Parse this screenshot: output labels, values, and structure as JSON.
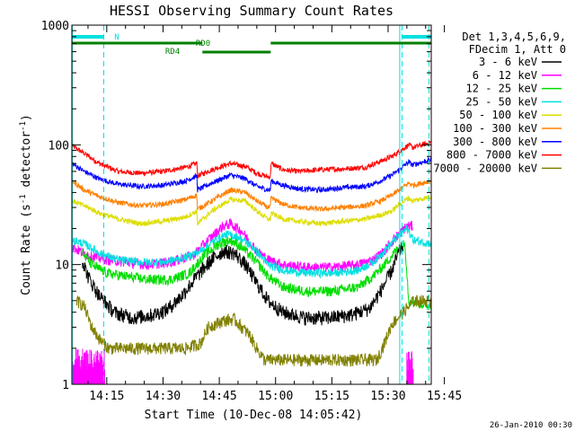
{
  "chart_data": {
    "type": "line",
    "title": "HESSI Observing Summary Count Rates",
    "xlabel": "Start Time (10-Dec-08 14:05:42)",
    "ylabel_prefix": "Count Rate (s",
    "ylabel_sup1": "-1",
    "ylabel_mid": " detector",
    "ylabel_sup2": "-1",
    "ylabel_suffix": ")",
    "y_scale": "log",
    "ylim": [
      1,
      1000
    ],
    "y_ticks": [
      {
        "value": 1,
        "label": "1"
      },
      {
        "value": 10,
        "label": "10"
      },
      {
        "value": 100,
        "label": "100"
      },
      {
        "value": 1000,
        "label": "1000"
      }
    ],
    "xlim_min": [
      5.7,
      101.5
    ],
    "x_ticks": [
      {
        "value": 15,
        "label": "14:15"
      },
      {
        "value": 30,
        "label": "14:30"
      },
      {
        "value": 45,
        "label": "14:45"
      },
      {
        "value": 60,
        "label": "15:00"
      },
      {
        "value": 75,
        "label": "15:15"
      },
      {
        "value": 90,
        "label": "15:30"
      },
      {
        "value": 105,
        "label": "15:45"
      }
    ],
    "legend": {
      "position": "right",
      "header": [
        "Det 1,3,4,5,6,9,",
        "FDecim 1, Att 0"
      ],
      "entries": [
        {
          "label": "3 - 6 keV",
          "color": "#000000"
        },
        {
          "label": "6 - 12 keV",
          "color": "#ff00ff"
        },
        {
          "label": "12 - 25 keV",
          "color": "#00dd00"
        },
        {
          "label": "25 - 50 keV",
          "color": "#00e0e0"
        },
        {
          "label": "50 - 100 keV",
          "color": "#dddd00"
        },
        {
          "label": "100 - 300 keV",
          "color": "#ff8000"
        },
        {
          "label": "300 - 800 keV",
          "color": "#0000ff"
        },
        {
          "label": "800 - 7000 keV",
          "color": "#ff0000"
        },
        {
          "label": "7000 - 20000 keV",
          "color": "#808000"
        }
      ]
    },
    "series": [
      {
        "key": "red",
        "color": "#ff0000",
        "noise": 0.05,
        "points": [
          [
            5.8,
            98
          ],
          [
            9,
            85
          ],
          [
            13,
            70
          ],
          [
            18,
            60
          ],
          [
            24,
            58
          ],
          [
            30,
            60
          ],
          [
            36,
            65
          ],
          [
            39,
            70
          ],
          [
            39.2,
            55
          ],
          [
            43,
            62
          ],
          [
            48,
            70
          ],
          [
            52,
            66
          ],
          [
            55,
            58
          ],
          [
            58,
            54
          ],
          [
            58.6,
            54
          ],
          [
            58.8,
            70
          ],
          [
            62,
            62
          ],
          [
            66,
            60
          ],
          [
            72,
            62
          ],
          [
            78,
            63
          ],
          [
            84,
            65
          ],
          [
            88,
            73
          ],
          [
            91,
            80
          ],
          [
            93,
            88
          ],
          [
            95.5,
            100
          ],
          [
            96.5,
            95
          ],
          [
            101.4,
            105
          ]
        ]
      },
      {
        "key": "blue",
        "color": "#0000ff",
        "noise": 0.05,
        "points": [
          [
            5.8,
            70
          ],
          [
            9,
            60
          ],
          [
            13,
            52
          ],
          [
            18,
            47
          ],
          [
            24,
            45
          ],
          [
            30,
            46
          ],
          [
            36,
            50
          ],
          [
            39,
            55
          ],
          [
            39.2,
            42
          ],
          [
            43,
            48
          ],
          [
            48,
            56
          ],
          [
            52,
            52
          ],
          [
            55,
            45
          ],
          [
            58,
            42
          ],
          [
            58.6,
            42
          ],
          [
            58.8,
            50
          ],
          [
            62,
            46
          ],
          [
            66,
            43
          ],
          [
            72,
            42
          ],
          [
            78,
            44
          ],
          [
            84,
            45
          ],
          [
            88,
            50
          ],
          [
            91,
            56
          ],
          [
            93,
            62
          ],
          [
            95.5,
            72
          ],
          [
            96.5,
            68
          ],
          [
            101.4,
            75
          ]
        ]
      },
      {
        "key": "orange",
        "color": "#ff8000",
        "noise": 0.05,
        "points": [
          [
            5.8,
            50
          ],
          [
            9,
            42
          ],
          [
            13,
            37
          ],
          [
            18,
            33
          ],
          [
            24,
            31
          ],
          [
            30,
            32
          ],
          [
            36,
            35
          ],
          [
            39,
            38
          ],
          [
            39.2,
            29
          ],
          [
            43,
            34
          ],
          [
            48,
            42
          ],
          [
            52,
            40
          ],
          [
            55,
            34
          ],
          [
            58,
            30
          ],
          [
            58.6,
            30
          ],
          [
            58.8,
            36
          ],
          [
            62,
            32
          ],
          [
            66,
            30
          ],
          [
            72,
            29
          ],
          [
            78,
            30
          ],
          [
            84,
            31
          ],
          [
            88,
            34
          ],
          [
            91,
            38
          ],
          [
            93,
            42
          ],
          [
            95.5,
            48
          ],
          [
            96.5,
            46
          ],
          [
            101.4,
            50
          ]
        ]
      },
      {
        "key": "yellow",
        "color": "#dddd00",
        "noise": 0.05,
        "points": [
          [
            5.8,
            34
          ],
          [
            9,
            31
          ],
          [
            13,
            27
          ],
          [
            18,
            24
          ],
          [
            24,
            22
          ],
          [
            30,
            23
          ],
          [
            36,
            25
          ],
          [
            39,
            28
          ],
          [
            39.2,
            22
          ],
          [
            43,
            28
          ],
          [
            48,
            35
          ],
          [
            52,
            34
          ],
          [
            55,
            28
          ],
          [
            58,
            24
          ],
          [
            58.6,
            24
          ],
          [
            58.8,
            27
          ],
          [
            62,
            24
          ],
          [
            66,
            23
          ],
          [
            72,
            22
          ],
          [
            78,
            23
          ],
          [
            84,
            24
          ],
          [
            88,
            26
          ],
          [
            91,
            28
          ],
          [
            93,
            32
          ],
          [
            95.5,
            36
          ],
          [
            96.5,
            34
          ],
          [
            101.4,
            37
          ]
        ]
      },
      {
        "key": "magenta",
        "color": "#ff00ff",
        "noise": 0.1,
        "points": [
          [
            5.8,
            14
          ],
          [
            10,
            12
          ],
          [
            15,
            11
          ],
          [
            20,
            10.5
          ],
          [
            26,
            10
          ],
          [
            32,
            10.5
          ],
          [
            38,
            12
          ],
          [
            42,
            16
          ],
          [
            46,
            21
          ],
          [
            48,
            22
          ],
          [
            51,
            19
          ],
          [
            55,
            13
          ],
          [
            58,
            11
          ],
          [
            62,
            10
          ],
          [
            68,
            9.5
          ],
          [
            75,
            9.5
          ],
          [
            82,
            10
          ],
          [
            86,
            11
          ],
          [
            89,
            13
          ],
          [
            92,
            17
          ],
          [
            95,
            21
          ],
          [
            96.5,
            21
          ]
        ]
      },
      {
        "key": "cyan",
        "color": "#00e0e0",
        "noise": 0.08,
        "points": [
          [
            5.8,
            16
          ],
          [
            9,
            15
          ],
          [
            13,
            12.5
          ],
          [
            18,
            11
          ],
          [
            24,
            10.5
          ],
          [
            30,
            10.5
          ],
          [
            36,
            11.5
          ],
          [
            40,
            13
          ],
          [
            44,
            16
          ],
          [
            47,
            18
          ],
          [
            50,
            17
          ],
          [
            54,
            14
          ],
          [
            58,
            10
          ],
          [
            62,
            9
          ],
          [
            68,
            8.5
          ],
          [
            75,
            8.5
          ],
          [
            82,
            9
          ],
          [
            86,
            10.5
          ],
          [
            89,
            13
          ],
          [
            92,
            16.5
          ],
          [
            95,
            20
          ],
          [
            96.8,
            16
          ],
          [
            101.4,
            15
          ]
        ]
      },
      {
        "key": "green",
        "color": "#00dd00",
        "noise": 0.1,
        "points": [
          [
            8.5,
            12.5
          ],
          [
            11,
            10
          ],
          [
            15,
            8.5
          ],
          [
            20,
            8
          ],
          [
            26,
            7.5
          ],
          [
            32,
            7.5
          ],
          [
            37,
            8.5
          ],
          [
            41,
            12
          ],
          [
            45,
            15
          ],
          [
            48,
            16
          ],
          [
            51,
            14
          ],
          [
            55,
            10.5
          ],
          [
            58,
            8
          ],
          [
            62,
            6.5
          ],
          [
            68,
            6
          ],
          [
            75,
            6
          ],
          [
            82,
            6.5
          ],
          [
            86,
            8
          ],
          [
            89,
            10
          ],
          [
            92,
            13
          ],
          [
            94.5,
            15
          ],
          [
            95.5,
            5
          ],
          [
            101.4,
            4.5
          ]
        ]
      },
      {
        "key": "black",
        "color": "#000000",
        "noise": 0.14,
        "points": [
          [
            8.5,
            11
          ],
          [
            10,
            8
          ],
          [
            13,
            5.5
          ],
          [
            17,
            4
          ],
          [
            22,
            3.6
          ],
          [
            27,
            3.8
          ],
          [
            31,
            4.2
          ],
          [
            35,
            5.5
          ],
          [
            39,
            8
          ],
          [
            43,
            11
          ],
          [
            46,
            13
          ],
          [
            49,
            12.5
          ],
          [
            52,
            10
          ],
          [
            55,
            7
          ],
          [
            58,
            5
          ],
          [
            62,
            4
          ],
          [
            68,
            3.6
          ],
          [
            74,
            3.6
          ],
          [
            80,
            3.8
          ],
          [
            85,
            4.3
          ],
          [
            88,
            6
          ],
          [
            91,
            9
          ],
          [
            93,
            13
          ],
          [
            94,
            14
          ]
        ]
      },
      {
        "key": "olive",
        "color": "#808000",
        "noise": 0.12,
        "points": [
          [
            7,
            5
          ],
          [
            9,
            4.5
          ],
          [
            11,
            3
          ],
          [
            13,
            2.4
          ],
          [
            15.5,
            2
          ],
          [
            36,
            2
          ],
          [
            40,
            2.2
          ],
          [
            42,
            3
          ],
          [
            44,
            3.2
          ],
          [
            46,
            3.4
          ],
          [
            49,
            3.5
          ],
          [
            51,
            3
          ],
          [
            53,
            2.6
          ],
          [
            55,
            2
          ],
          [
            57,
            1.6
          ],
          [
            60,
            1.6
          ],
          [
            87,
            1.6
          ],
          [
            89,
            2.2
          ],
          [
            91,
            3.2
          ],
          [
            94,
            4
          ],
          [
            97,
            5
          ],
          [
            101.4,
            5
          ]
        ]
      }
    ],
    "annotations": [
      {
        "text": "N",
        "color": "#00e0e0"
      },
      {
        "text": "RD0",
        "color": "#008000"
      },
      {
        "text": "RD4",
        "color": "#008000"
      }
    ],
    "attenuator_markers_min": [
      14.2,
      93.7,
      100.9
    ],
    "footer_date": "26-Jan-2010 00:30",
    "colors": {
      "axis": "#000000",
      "background": "#ffffff",
      "night": "#00e0e0",
      "decimation": "#008000"
    }
  }
}
